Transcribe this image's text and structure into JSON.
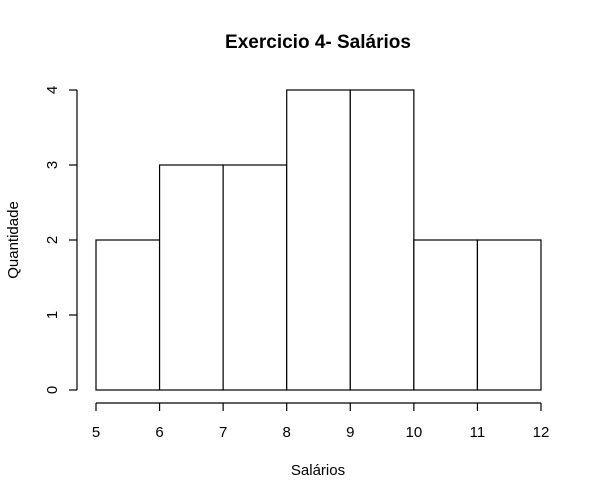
{
  "chart_data": {
    "type": "bar",
    "title": "Exercicio 4- Salários",
    "xlabel": "Salários",
    "ylabel": "Quantidade",
    "bins": [
      {
        "start": 5,
        "end": 6,
        "count": 2
      },
      {
        "start": 6,
        "end": 7,
        "count": 3
      },
      {
        "start": 7,
        "end": 8,
        "count": 3
      },
      {
        "start": 8,
        "end": 9,
        "count": 4
      },
      {
        "start": 9,
        "end": 10,
        "count": 4
      },
      {
        "start": 10,
        "end": 11,
        "count": 2
      },
      {
        "start": 11,
        "end": 12,
        "count": 2
      }
    ],
    "xlim": [
      5,
      12
    ],
    "ylim": [
      0,
      4
    ],
    "x_ticks": [
      "5",
      "6",
      "7",
      "8",
      "9",
      "10",
      "11",
      "12"
    ],
    "y_ticks": [
      "0",
      "1",
      "2",
      "3",
      "4"
    ],
    "grid": false,
    "legend": "none",
    "bar_fill": "#ffffff",
    "bar_stroke": "#000000"
  }
}
